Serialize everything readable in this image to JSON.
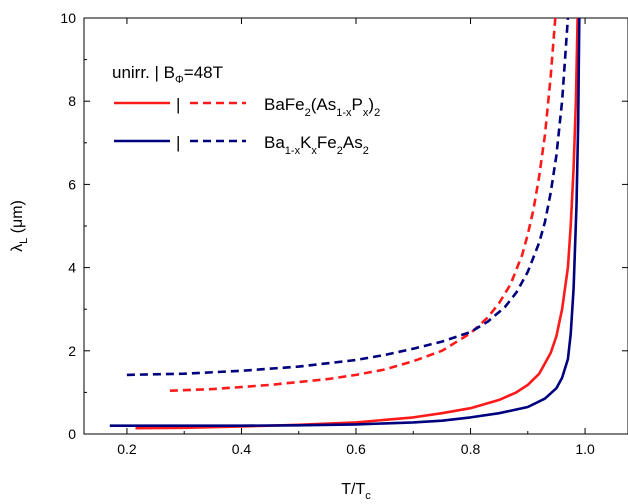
{
  "chart_data": {
    "type": "line",
    "title": "",
    "xlabel": {
      "main": "T/T",
      "sub": "c"
    },
    "ylabel": {
      "main": "λ",
      "sub": "L",
      "rest": " (μm)"
    },
    "xlim": [
      0.125,
      1.075
    ],
    "ylim": [
      0,
      10
    ],
    "xticks": [
      {
        "v": 0.2,
        "label": "0.2"
      },
      {
        "v": 0.4,
        "label": "0.4"
      },
      {
        "v": 0.6,
        "label": "0.6"
      },
      {
        "v": 0.8,
        "label": "0.8"
      },
      {
        "v": 1.0,
        "label": "1.0"
      }
    ],
    "yticks": [
      {
        "v": 0,
        "label": "0"
      },
      {
        "v": 2,
        "label": "2"
      },
      {
        "v": 4,
        "label": "4"
      },
      {
        "v": 6,
        "label": "6"
      },
      {
        "v": 8,
        "label": "8"
      },
      {
        "v": 10,
        "label": "10"
      }
    ],
    "grid": false,
    "legend": {
      "header": {
        "a": "unirr.",
        "b": "| B",
        "b_sub": "Φ",
        "c": "=48T"
      },
      "bar": "|",
      "entries": [
        {
          "color": "#ff1a1a",
          "parts": [
            [
              "Ba",
              ""
            ],
            [
              "Fe",
              ""
            ],
            [
              "2",
              "sub"
            ],
            [
              "(As",
              ""
            ],
            [
              "1-x",
              "sub"
            ],
            [
              "P",
              ""
            ],
            [
              "x",
              "sub"
            ],
            [
              ")",
              ""
            ],
            [
              "2",
              "sub"
            ]
          ]
        },
        {
          "color": "#00007f",
          "parts": [
            [
              "Ba",
              ""
            ],
            [
              "1-x",
              "sub"
            ],
            [
              "K",
              ""
            ],
            [
              "x",
              "sub"
            ],
            [
              "Fe",
              ""
            ],
            [
              "2",
              "sub"
            ],
            [
              "As",
              ""
            ],
            [
              "2",
              "sub"
            ]
          ]
        }
      ]
    },
    "series": [
      {
        "color": "#ff1a1a",
        "dash": "solid",
        "points": [
          [
            0.215,
            0.14
          ],
          [
            0.3,
            0.15
          ],
          [
            0.4,
            0.18
          ],
          [
            0.5,
            0.22
          ],
          [
            0.6,
            0.28
          ],
          [
            0.7,
            0.4
          ],
          [
            0.75,
            0.5
          ],
          [
            0.8,
            0.62
          ],
          [
            0.85,
            0.82
          ],
          [
            0.88,
            1.0
          ],
          [
            0.9,
            1.18
          ],
          [
            0.92,
            1.45
          ],
          [
            0.94,
            1.95
          ],
          [
            0.95,
            2.35
          ],
          [
            0.96,
            3.0
          ],
          [
            0.97,
            4.0
          ],
          [
            0.975,
            5.0
          ],
          [
            0.98,
            6.4
          ],
          [
            0.984,
            8.0
          ],
          [
            0.987,
            10.0
          ]
        ]
      },
      {
        "color": "#ff1a1a",
        "dash": "dashed",
        "points": [
          [
            0.275,
            1.04
          ],
          [
            0.35,
            1.08
          ],
          [
            0.45,
            1.18
          ],
          [
            0.55,
            1.32
          ],
          [
            0.6,
            1.42
          ],
          [
            0.65,
            1.55
          ],
          [
            0.7,
            1.75
          ],
          [
            0.75,
            2.0
          ],
          [
            0.8,
            2.42
          ],
          [
            0.83,
            2.8
          ],
          [
            0.85,
            3.15
          ],
          [
            0.87,
            3.6
          ],
          [
            0.89,
            4.3
          ],
          [
            0.9,
            4.8
          ],
          [
            0.91,
            5.4
          ],
          [
            0.92,
            6.2
          ],
          [
            0.93,
            7.2
          ],
          [
            0.94,
            8.6
          ],
          [
            0.948,
            10.0
          ]
        ]
      },
      {
        "color": "#00007f",
        "dash": "solid",
        "points": [
          [
            0.17,
            0.2
          ],
          [
            0.3,
            0.2
          ],
          [
            0.4,
            0.2
          ],
          [
            0.5,
            0.21
          ],
          [
            0.6,
            0.23
          ],
          [
            0.7,
            0.28
          ],
          [
            0.75,
            0.32
          ],
          [
            0.8,
            0.4
          ],
          [
            0.85,
            0.5
          ],
          [
            0.9,
            0.65
          ],
          [
            0.93,
            0.85
          ],
          [
            0.95,
            1.1
          ],
          [
            0.96,
            1.35
          ],
          [
            0.97,
            1.8
          ],
          [
            0.975,
            2.4
          ],
          [
            0.98,
            3.5
          ],
          [
            0.985,
            5.5
          ],
          [
            0.988,
            7.5
          ],
          [
            0.99,
            10.0
          ]
        ]
      },
      {
        "color": "#00007f",
        "dash": "dashed",
        "points": [
          [
            0.2,
            1.42
          ],
          [
            0.3,
            1.45
          ],
          [
            0.4,
            1.52
          ],
          [
            0.5,
            1.62
          ],
          [
            0.6,
            1.78
          ],
          [
            0.65,
            1.9
          ],
          [
            0.7,
            2.05
          ],
          [
            0.75,
            2.22
          ],
          [
            0.8,
            2.45
          ],
          [
            0.83,
            2.7
          ],
          [
            0.86,
            3.05
          ],
          [
            0.88,
            3.4
          ],
          [
            0.9,
            3.9
          ],
          [
            0.92,
            4.6
          ],
          [
            0.93,
            5.1
          ],
          [
            0.94,
            5.8
          ],
          [
            0.95,
            6.7
          ],
          [
            0.96,
            8.0
          ],
          [
            0.97,
            10.0
          ]
        ]
      }
    ]
  }
}
